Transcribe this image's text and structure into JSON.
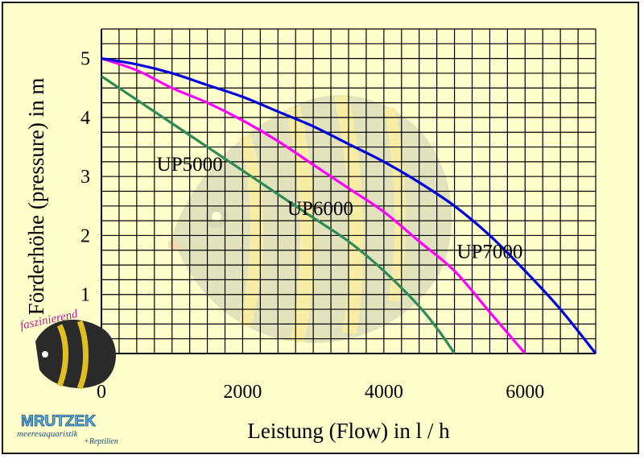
{
  "chart_data": {
    "type": "line",
    "title": "",
    "xlabel": "Leistung (Flow) in l / h",
    "ylabel": "Förderhöhe (pressure) in m",
    "xlim": [
      0,
      7000
    ],
    "ylim": [
      0,
      5.5
    ],
    "x_ticks": [
      "0",
      "2000",
      "4000",
      "6000"
    ],
    "y_ticks": [
      "0",
      "1",
      "2",
      "3",
      "4",
      "5"
    ],
    "grid": true,
    "series": [
      {
        "name": "UP5000",
        "color": "#2e8b57",
        "x": [
          0,
          500,
          1000,
          1500,
          2000,
          2500,
          3000,
          3500,
          4000,
          4500,
          4800,
          5000
        ],
        "y": [
          4.7,
          4.3,
          3.9,
          3.5,
          3.1,
          2.7,
          2.3,
          1.9,
          1.4,
          0.8,
          0.35,
          0
        ]
      },
      {
        "name": "UP6000",
        "color": "#ff00ff",
        "x": [
          0,
          500,
          1000,
          1500,
          2000,
          2500,
          3000,
          3500,
          4000,
          4500,
          5000,
          5500,
          6000
        ],
        "y": [
          5.0,
          4.8,
          4.5,
          4.25,
          3.95,
          3.6,
          3.2,
          2.8,
          2.4,
          1.9,
          1.4,
          0.7,
          0
        ]
      },
      {
        "name": "UP7000",
        "color": "#0000dd",
        "x": [
          0,
          500,
          1000,
          1500,
          2000,
          2500,
          3000,
          3500,
          4000,
          4500,
          5000,
          5500,
          6000,
          6500,
          7000
        ],
        "y": [
          5.0,
          4.9,
          4.75,
          4.55,
          4.35,
          4.1,
          3.85,
          3.55,
          3.25,
          2.9,
          2.5,
          2.0,
          1.4,
          0.75,
          0
        ]
      }
    ],
    "annotations": [
      {
        "text": "UP5000",
        "x": 1250,
        "y": 3.1
      },
      {
        "text": "UP6000",
        "x": 3100,
        "y": 2.35
      },
      {
        "text": "UP7000",
        "x": 5500,
        "y": 1.62
      }
    ]
  },
  "logo": {
    "tagline": "faszinierend",
    "brand": "MRUTZEK",
    "sub1": "meeresaquaristik",
    "sub2": "+Reptilien"
  }
}
